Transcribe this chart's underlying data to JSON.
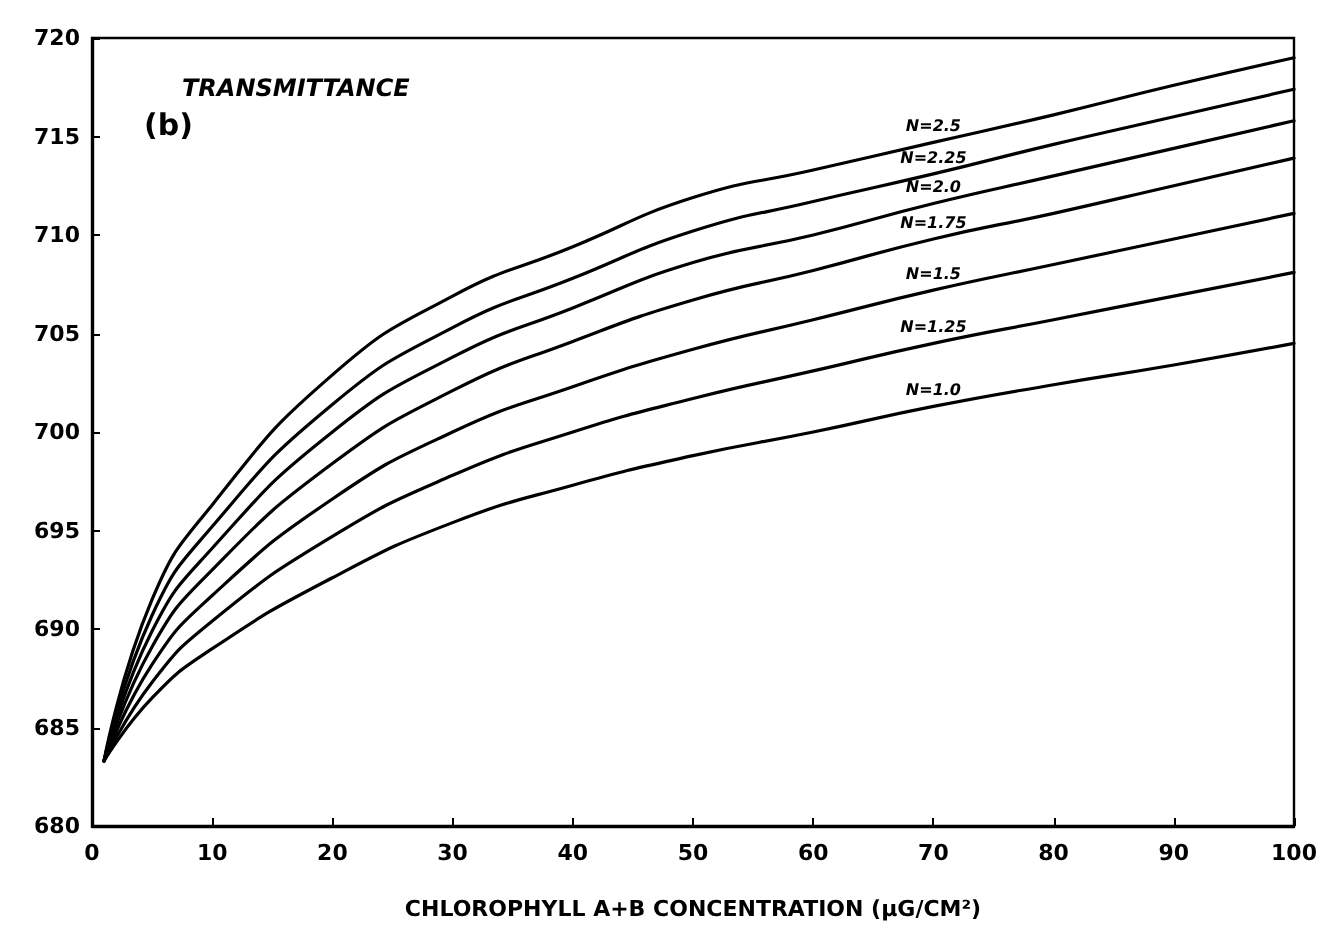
{
  "chart_data": {
    "type": "line",
    "title": "TRANSMITTANCE",
    "xlabel": "CHLOROPHYLL A+B CONCENTRATION (μG/CM²)",
    "annotations": [
      "(b)"
    ],
    "x": [
      1,
      5,
      10,
      20,
      30,
      40,
      50,
      60,
      70,
      80,
      90,
      100
    ],
    "series": [
      {
        "name": "N=2.5",
        "color": "#000000",
        "values": [
          683.3,
          691.5,
          696.3,
          702.9,
          706.9,
          709.4,
          711.9,
          713.3,
          714.7,
          716.1,
          717.6,
          719.0
        ]
      },
      {
        "name": "N=2.25",
        "color": "#000000",
        "values": [
          683.3,
          690.7,
          695.2,
          701.4,
          705.3,
          707.8,
          710.2,
          711.7,
          713.1,
          714.6,
          716.0,
          717.4
        ]
      },
      {
        "name": "N=2.0",
        "color": "#000000",
        "values": [
          683.3,
          689.9,
          694.1,
          700.0,
          703.8,
          706.3,
          708.6,
          710.0,
          711.6,
          713.0,
          714.4,
          715.8
        ]
      },
      {
        "name": "N=1.75",
        "color": "#000000",
        "values": [
          683.3,
          689.1,
          693.0,
          698.4,
          702.1,
          704.6,
          706.7,
          708.2,
          709.8,
          711.1,
          712.5,
          713.9
        ]
      },
      {
        "name": "N=1.5",
        "color": "#000000",
        "values": [
          683.3,
          688.2,
          691.7,
          696.6,
          700.0,
          702.3,
          704.2,
          705.7,
          707.2,
          708.5,
          709.8,
          711.1
        ]
      },
      {
        "name": "N=1.25",
        "color": "#000000",
        "values": [
          683.3,
          687.3,
          690.4,
          694.7,
          697.8,
          700.0,
          701.7,
          703.1,
          704.5,
          705.7,
          706.9,
          708.1
        ]
      },
      {
        "name": "N=1.0",
        "color": "#000000",
        "values": [
          683.3,
          686.5,
          689.0,
          692.6,
          695.4,
          697.3,
          698.8,
          700.0,
          701.3,
          702.4,
          703.4,
          704.5
        ]
      }
    ],
    "xlim": [
      0,
      100
    ],
    "xticks": [
      0,
      10,
      20,
      30,
      40,
      50,
      60,
      70,
      80,
      90,
      100
    ],
    "ylim": [
      680,
      720
    ],
    "yticks": [
      680,
      685,
      690,
      695,
      700,
      705,
      710,
      715,
      720
    ],
    "grid": false,
    "legend": false,
    "marker": "none",
    "line_style": "solid"
  }
}
